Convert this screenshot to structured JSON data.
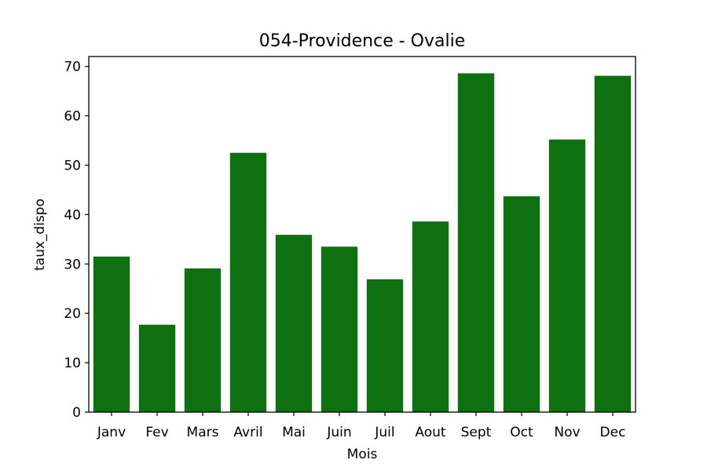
{
  "chart_data": {
    "type": "bar",
    "title": "054-Providence - Ovalie",
    "xlabel": "Mois",
    "ylabel": "taux_dispo",
    "categories": [
      "Janv",
      "Fev",
      "Mars",
      "Avril",
      "Mai",
      "Juin",
      "Juil",
      "Aout",
      "Sept",
      "Oct",
      "Nov",
      "Dec"
    ],
    "values": [
      31.5,
      17.7,
      29.1,
      52.5,
      35.9,
      33.5,
      26.9,
      38.6,
      68.6,
      43.7,
      55.2,
      68.1
    ],
    "ylim": [
      0,
      72
    ],
    "yticks": [
      0,
      10,
      20,
      30,
      40,
      50,
      60,
      70
    ],
    "bar_color": "#0e7010",
    "grid": false,
    "legend": "none"
  }
}
